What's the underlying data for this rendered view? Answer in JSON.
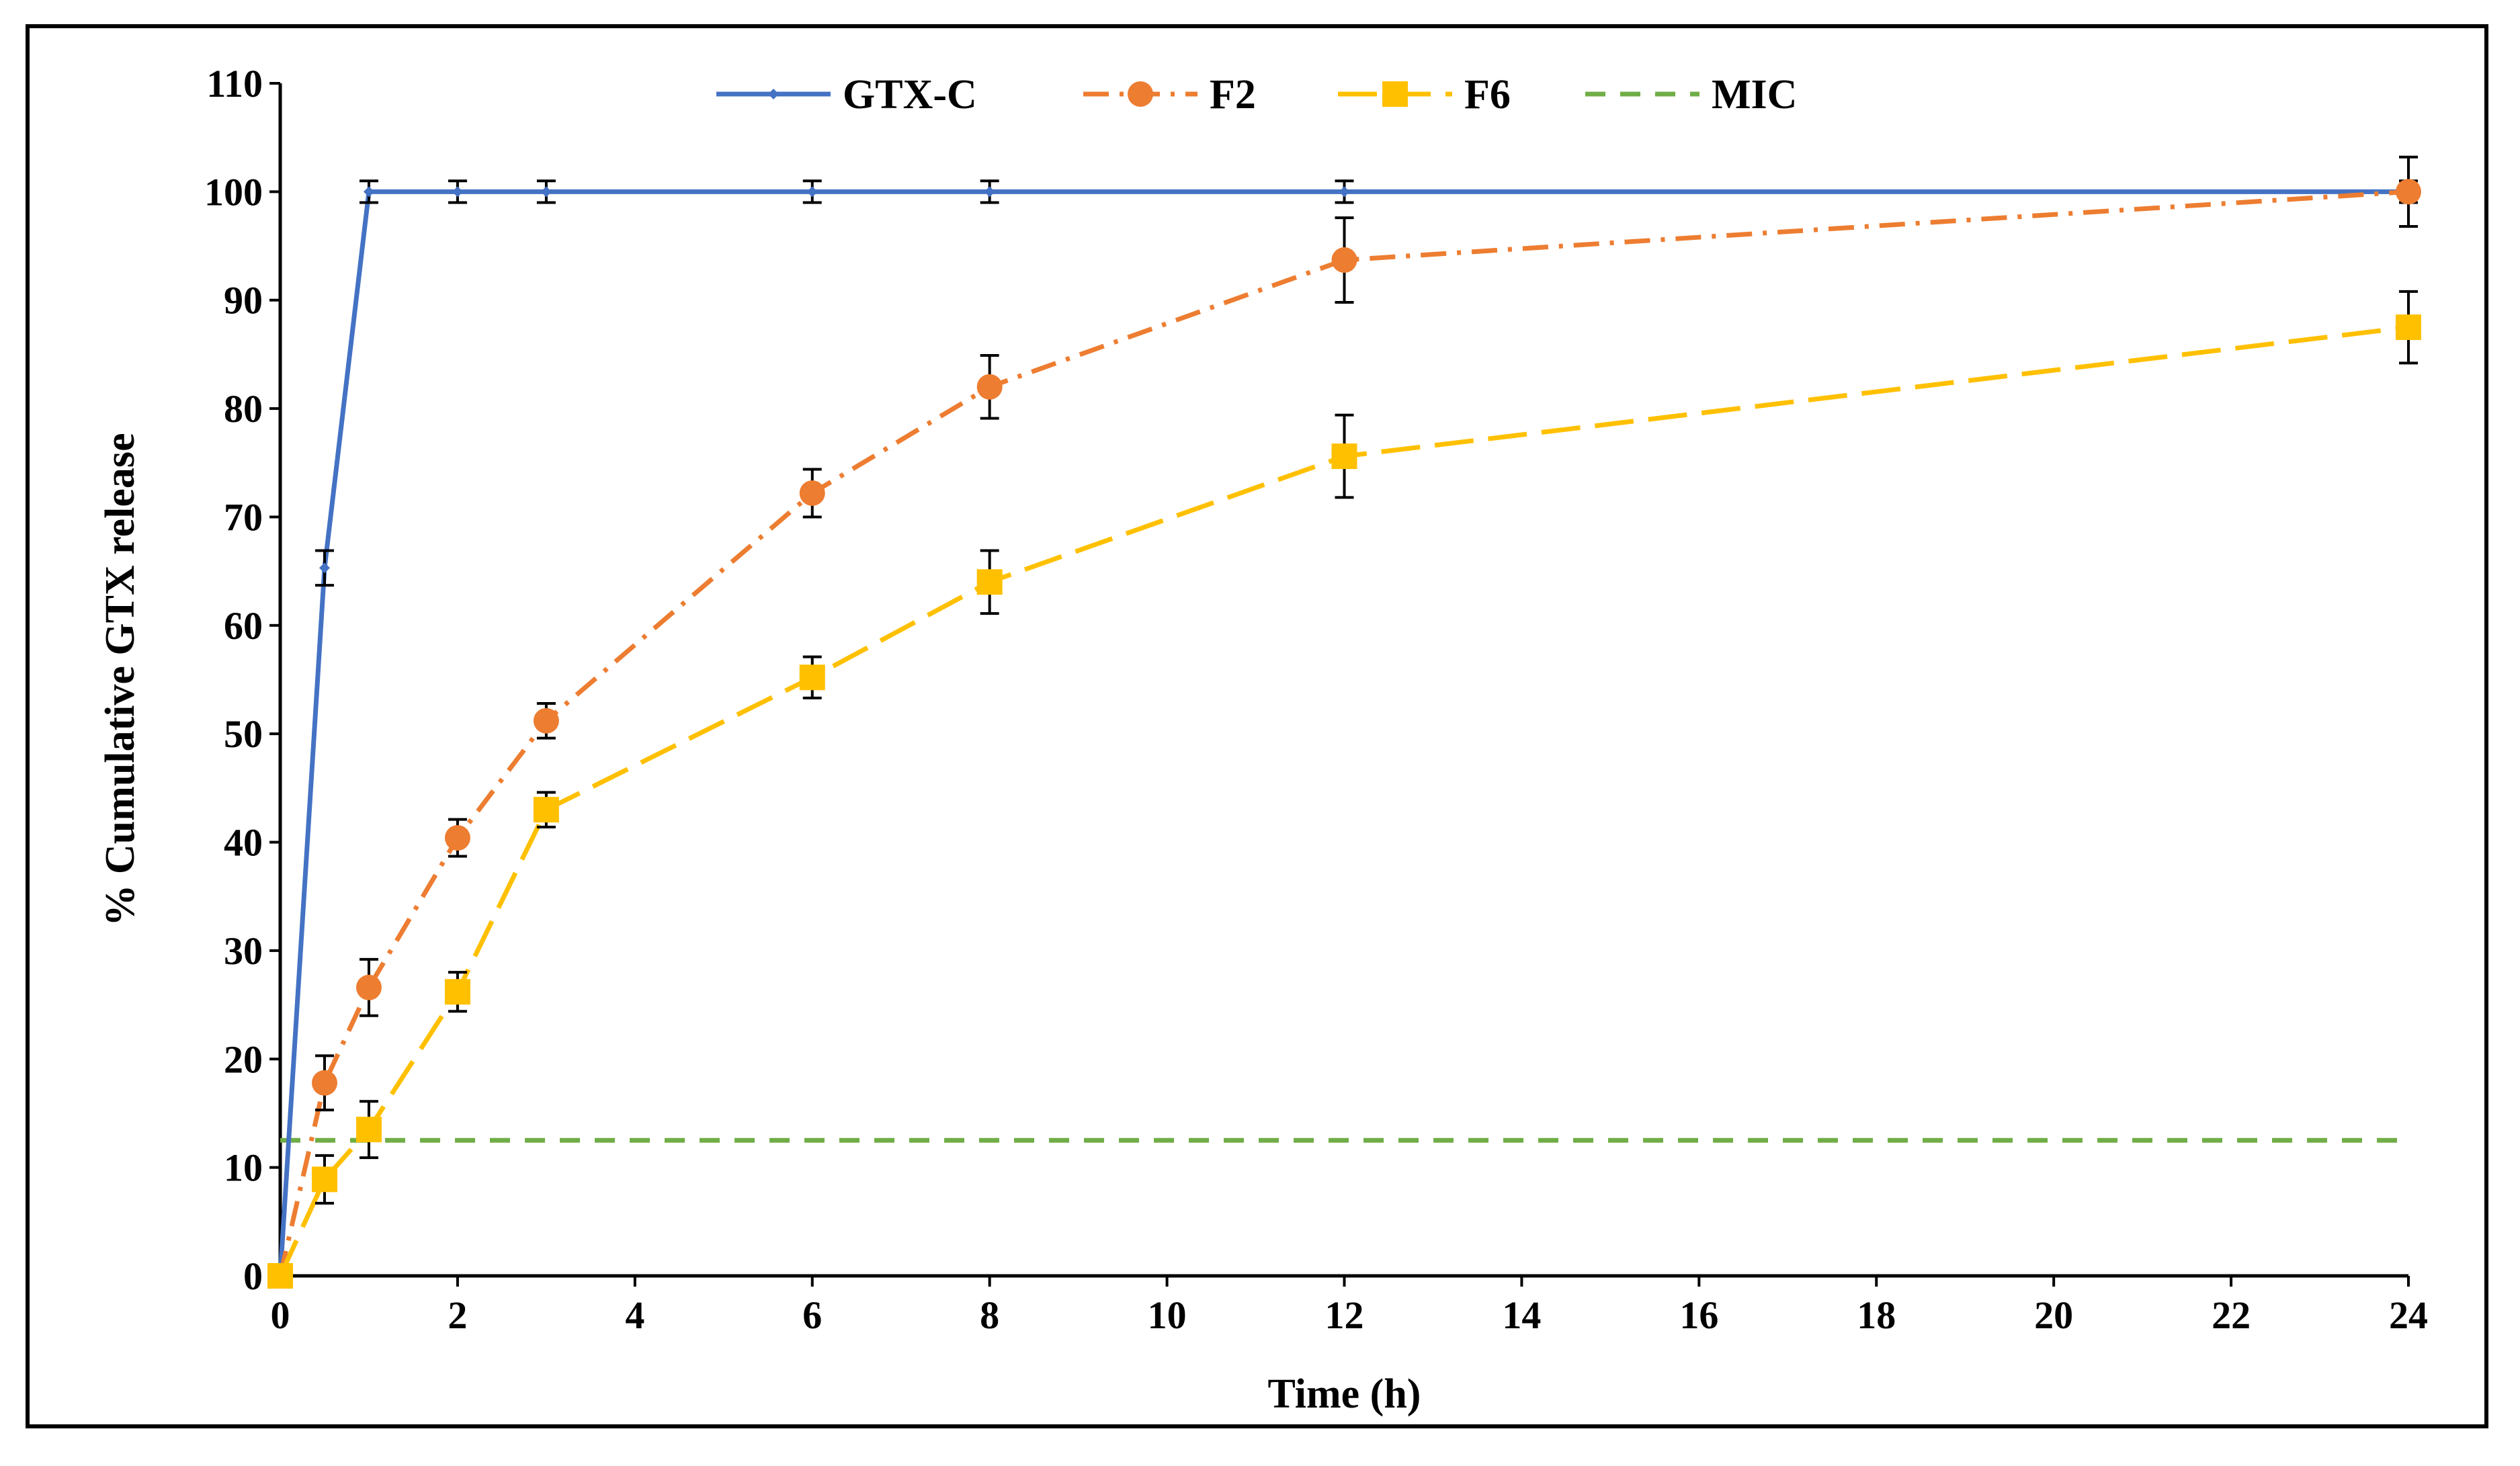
{
  "chart_data": {
    "type": "line",
    "title": "",
    "xlabel": "Time (h)",
    "ylabel": "% Cumulative GTX release",
    "xlim": [
      0,
      24
    ],
    "ylim": [
      0,
      110
    ],
    "xticks": [
      0,
      2,
      4,
      6,
      8,
      10,
      12,
      14,
      16,
      18,
      20,
      22,
      24
    ],
    "yticks": [
      0,
      10,
      20,
      30,
      40,
      50,
      60,
      70,
      80,
      90,
      100,
      110
    ],
    "grid": false,
    "legend_position": "top-center",
    "series": [
      {
        "name": "GTX-C",
        "color": "#4472C4",
        "line_style": "solid",
        "marker": "small-diamond",
        "x": [
          0,
          0.5,
          1,
          2,
          3,
          6,
          8,
          12,
          24
        ],
        "y": [
          0,
          65.3,
          100,
          100,
          100,
          100,
          100,
          100,
          100
        ],
        "error": [
          0,
          1.6,
          1.0,
          1.0,
          1.0,
          1.0,
          1.0,
          1.0,
          1.0
        ]
      },
      {
        "name": "F2",
        "color": "#ED7D31",
        "line_style": "dash-dot",
        "marker": "circle",
        "x": [
          0,
          0.5,
          1,
          2,
          3,
          6,
          8,
          12,
          24
        ],
        "y": [
          0,
          17.8,
          26.6,
          40.4,
          51.2,
          72.2,
          82.0,
          93.7,
          100
        ],
        "error": [
          0,
          2.5,
          2.6,
          1.7,
          1.6,
          2.2,
          2.9,
          3.9,
          3.2
        ]
      },
      {
        "name": "F6",
        "color": "#FFC000",
        "line_style": "long-dash",
        "marker": "square",
        "x": [
          0,
          0.5,
          1,
          2,
          3,
          6,
          8,
          12,
          24
        ],
        "y": [
          0,
          8.9,
          13.5,
          26.2,
          43.0,
          55.2,
          64.0,
          75.6,
          87.5
        ],
        "error": [
          0,
          2.2,
          2.6,
          1.8,
          1.6,
          1.9,
          2.9,
          3.8,
          3.3
        ]
      },
      {
        "name": "MIC",
        "color": "#70AD47",
        "line_style": "dashed",
        "marker": "none",
        "x": [
          0,
          24
        ],
        "y": [
          12.5,
          12.5
        ],
        "error": []
      }
    ]
  }
}
